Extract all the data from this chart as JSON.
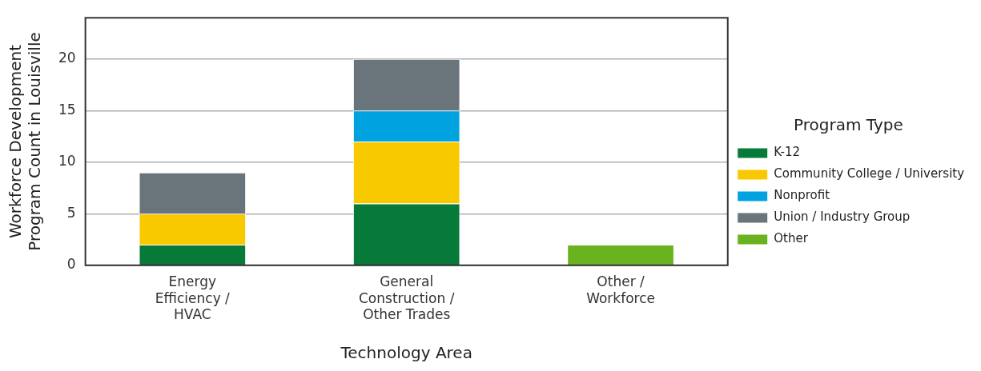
{
  "chart_data": {
    "type": "bar",
    "stacked": true,
    "xlabel": "Technology Area",
    "ylabel": "Workforce Development Program Count in Louisville",
    "legend_title": "Program Type",
    "categories": [
      "Energy Efficiency / HVAC",
      "General Construction / Other Trades",
      "Other / Workforce"
    ],
    "series": [
      {
        "name": "K-12",
        "color": "#077a3a",
        "values": [
          2,
          6,
          null
        ]
      },
      {
        "name": "Community College / University",
        "color": "#f9c900",
        "values": [
          3,
          6,
          null
        ]
      },
      {
        "name": "Nonprofit",
        "color": "#00a3e0",
        "values": [
          null,
          3,
          null
        ]
      },
      {
        "name": "Union / Industry Group",
        "color": "#69757b",
        "values": [
          4,
          5,
          null
        ]
      },
      {
        "name": "Other",
        "color": "#6ab31e",
        "values": [
          null,
          null,
          2
        ]
      }
    ],
    "ylim": [
      0,
      24
    ],
    "yticks": [
      0,
      5,
      10,
      15,
      20
    ],
    "grid": "y",
    "legend": "right"
  }
}
